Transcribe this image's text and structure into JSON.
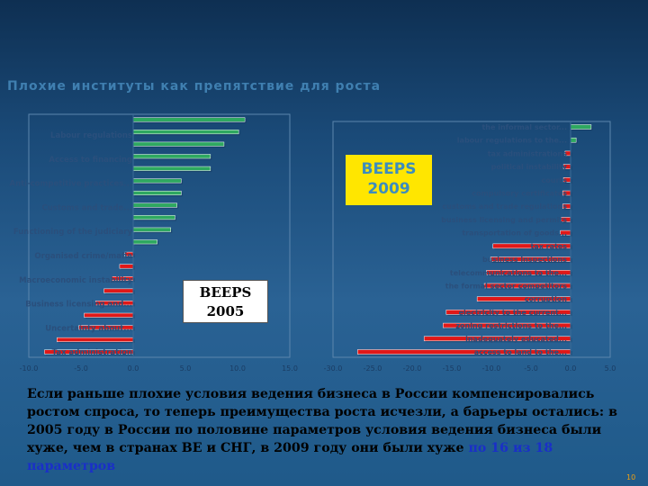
{
  "slide": {
    "title": "Плохие институты как препятствие для роста",
    "caption_main": "Если раньше плохие условия ведения бизнеса в России компенсировались ростом спроса, то теперь преимущества роста исчезли, а барьеры остались: в 2005 году в России по половине параметров условия ведения бизнеса были хуже, чем в странах ВЕ и СНГ, в 2009 году они были хуже ",
    "caption_highlight": "по 16 из 18 параметров",
    "page_number": "10",
    "badge_2005": [
      "BEEPS",
      "2005"
    ],
    "badge_2009": [
      "BEEPS",
      "2009"
    ]
  },
  "colors": {
    "green": "#2ea860",
    "red": "#e01818",
    "highlight": "#1a2fc8",
    "badge2009_bg": "#ffe600"
  },
  "chart_data": [
    {
      "type": "bar",
      "orientation": "horizontal",
      "title": "",
      "xlim": [
        -10,
        15
      ],
      "x_ticks": [
        "-10.0",
        "-5.0",
        "0.0",
        "5.0",
        "10.0",
        "15.0"
      ],
      "category_labels": [
        "Labour regulations",
        "Access to financing",
        "Anti-competitive practices...",
        "Customs and trade...",
        "Functioning of the judiciary",
        "Organised crime/mafia",
        "Macroeconomic instability",
        "Business licensing and...",
        "Uncertainty about...",
        "Tax administration"
      ],
      "values": [
        10.7,
        10.1,
        8.7,
        7.4,
        7.4,
        4.6,
        4.6,
        4.2,
        4.0,
        3.6,
        2.3,
        -0.8,
        -1.3,
        -2.1,
        -2.8,
        -3.6,
        -4.7,
        -5.2,
        -7.3,
        -8.5
      ]
    },
    {
      "type": "bar",
      "orientation": "horizontal",
      "title": "",
      "xlim": [
        -30,
        5
      ],
      "x_ticks": [
        "-30.0",
        "-25.0",
        "-20.0",
        "-15.0",
        "-10.0",
        "-5.0",
        "0.0",
        "5.0"
      ],
      "categories": [
        "the informal sector...",
        "labour regulations to the...",
        "tax administrations",
        "political instability",
        "courts",
        "compulsory certificates",
        "customs and trade regulations",
        "business licensing and permits",
        "transportation of goods...",
        "tax rates",
        "business inspections",
        "telecommunications to the...",
        "the formal sector competitors",
        "corruption",
        "electricity to the current...",
        "zoning restrictions to the...",
        "inadequately educated...",
        "access to land to the..."
      ],
      "values": [
        2.6,
        0.7,
        -0.7,
        -0.9,
        -0.9,
        -1.0,
        -1.0,
        -1.2,
        -1.3,
        -9.8,
        -10.1,
        -10.6,
        -10.9,
        -11.8,
        -15.7,
        -16.1,
        -18.5,
        -26.9
      ]
    }
  ]
}
